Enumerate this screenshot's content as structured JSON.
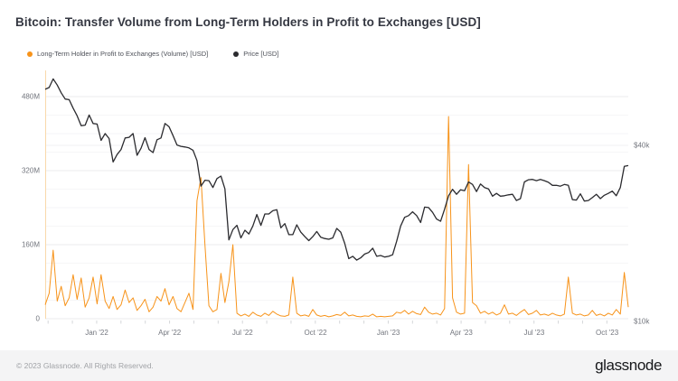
{
  "header": {
    "title": "Bitcoin: Transfer Volume from Long-Term Holders in Profit to Exchanges [USD]"
  },
  "legend": {
    "items": [
      {
        "label": "Long-Term Holder in Profit to Exchanges (Volume) [USD]",
        "color": "#f7931a"
      },
      {
        "label": "Price [USD]",
        "color": "#2b2b2f"
      }
    ]
  },
  "footer": {
    "copyright": "© 2023 Glassnode. All Rights Reserved.",
    "brand": "glassnode"
  },
  "chart_data": {
    "type": "line",
    "title": "Bitcoin: Transfer Volume from Long-Term Holders in Profit to Exchanges [USD]",
    "x_range": [
      "2021-10-29",
      "2023-10-29"
    ],
    "sample_interval_days": 5,
    "x_ticks": [
      "Jan '22",
      "Apr '22",
      "Jul '22",
      "Oct '22",
      "Jan '23",
      "Apr '23",
      "Jul '23",
      "Oct '23"
    ],
    "left_axis": {
      "name": "Transfer Volume",
      "unit": "USD (millions)",
      "scale": "linear",
      "tick_labels": [
        "0",
        "160M",
        "320M",
        "480M"
      ],
      "tick_values": [
        0,
        160,
        320,
        480
      ],
      "minor_grid_step": 40,
      "range": [
        0,
        536
      ]
    },
    "right_axis": {
      "name": "Price",
      "unit": "USD",
      "scale": "log",
      "tick_labels": [
        "$10k",
        "$40k"
      ],
      "tick_values": [
        10000,
        40000
      ]
    },
    "grid": true,
    "legend_position": "top-left",
    "series": [
      {
        "name": "Long-Term Holder in Profit to Exchanges (Volume) [USD]",
        "color": "#f7931a",
        "axis": "left",
        "unit": "USD millions",
        "values": [
          30,
          55,
          148,
          38,
          70,
          28,
          45,
          95,
          42,
          88,
          25,
          45,
          90,
          32,
          95,
          38,
          22,
          48,
          20,
          30,
          62,
          35,
          45,
          18,
          28,
          42,
          15,
          25,
          48,
          38,
          65,
          30,
          48,
          22,
          15,
          35,
          55,
          20,
          255,
          305,
          160,
          28,
          15,
          20,
          98,
          35,
          80,
          160,
          12,
          6,
          10,
          5,
          14,
          8,
          5,
          12,
          7,
          16,
          10,
          6,
          5,
          8,
          90,
          12,
          6,
          8,
          5,
          20,
          8,
          5,
          7,
          4,
          6,
          9,
          7,
          14,
          6,
          8,
          5,
          4,
          6,
          5,
          10,
          4,
          5,
          4,
          5,
          6,
          14,
          12,
          18,
          10,
          16,
          11,
          9,
          25,
          14,
          10,
          12,
          8,
          22,
          437,
          45,
          14,
          10,
          12,
          333,
          35,
          28,
          12,
          16,
          10,
          14,
          8,
          12,
          30,
          10,
          12,
          7,
          14,
          20,
          9,
          12,
          18,
          8,
          10,
          7,
          12,
          8,
          6,
          10,
          90,
          12,
          8,
          10,
          6,
          8,
          18,
          7,
          10,
          6,
          12,
          8,
          20,
          10,
          100,
          25
        ]
      },
      {
        "name": "Price [USD]",
        "color": "#2b2b2f",
        "axis": "right",
        "unit": "USD",
        "values": [
          62200,
          63100,
          67500,
          64300,
          60500,
          57600,
          57300,
          53600,
          50500,
          46700,
          46900,
          50800,
          47500,
          47300,
          41600,
          43900,
          42200,
          35100,
          37200,
          38700,
          42400,
          42600,
          43900,
          37000,
          39100,
          42500,
          38700,
          37800,
          41800,
          42400,
          47500,
          46300,
          43200,
          40100,
          39700,
          39500,
          39200,
          38500,
          35500,
          29000,
          30400,
          30300,
          28700,
          30800,
          31400,
          28400,
          19000,
          20600,
          21300,
          19300,
          20500,
          19900,
          21200,
          23200,
          21300,
          23300,
          23300,
          23900,
          24100,
          20900,
          21600,
          19800,
          19800,
          21400,
          20200,
          19500,
          18900,
          19500,
          20300,
          19400,
          19200,
          19100,
          19300,
          20800,
          20200,
          18500,
          16400,
          16700,
          16200,
          16500,
          17000,
          17200,
          17800,
          16700,
          16800,
          16600,
          16700,
          16900,
          18800,
          21200,
          22700,
          23000,
          23700,
          23000,
          21800,
          24600,
          24500,
          23600,
          22400,
          22000,
          24200,
          26900,
          28300,
          27200,
          28200,
          28000,
          30000,
          29400,
          27800,
          29500,
          28700,
          28400,
          26800,
          27400,
          26800,
          26900,
          27100,
          27200,
          25900,
          26300,
          30000,
          30500,
          30600,
          30300,
          30600,
          30300,
          29900,
          29200,
          29200,
          29000,
          29400,
          29200,
          26100,
          26000,
          27300,
          25800,
          25900,
          26500,
          27200,
          26300,
          27000,
          27400,
          27900,
          26900,
          28700,
          33900,
          34100
        ]
      }
    ]
  }
}
